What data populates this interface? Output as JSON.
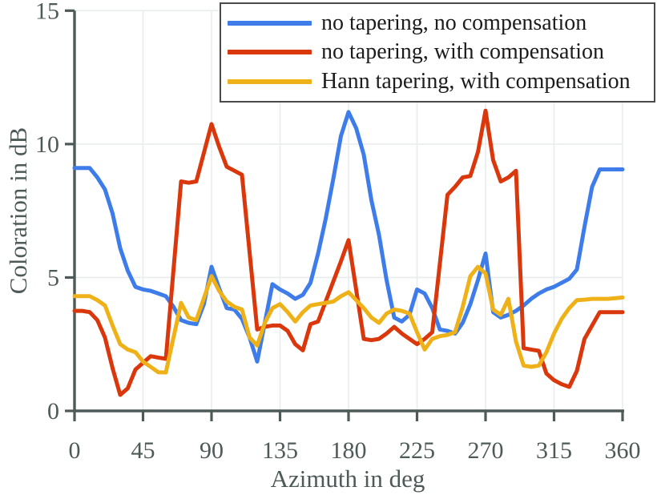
{
  "figure": {
    "kind": "line chart",
    "background": "#ffffff"
  },
  "colors": {
    "axis": "#4d5a58",
    "tick_text": "#4d5a58",
    "grid": "#e8eceb",
    "legend_border": "#4a4a4a",
    "legend_text": "#1c1c1c"
  },
  "chart_data": {
    "type": "line",
    "title": "",
    "xlabel": "Azimuth in deg",
    "ylabel": "Coloration in dB",
    "xlim": [
      0,
      360
    ],
    "ylim": [
      0,
      15
    ],
    "x_ticks": [
      0,
      45,
      90,
      135,
      180,
      225,
      270,
      315,
      360
    ],
    "y_ticks": [
      0,
      5,
      10,
      15
    ],
    "grid": true,
    "legend_position": "top",
    "line_width": 5,
    "series": [
      {
        "name": "no tapering, no compensation",
        "color": "#3e7de9",
        "points": [
          [
            0,
            9.1
          ],
          [
            5,
            9.1
          ],
          [
            10,
            9.1
          ],
          [
            15,
            8.75
          ],
          [
            20,
            8.3
          ],
          [
            25,
            7.4
          ],
          [
            30,
            6.1
          ],
          [
            35,
            5.25
          ],
          [
            40,
            4.65
          ],
          [
            45,
            4.55
          ],
          [
            50,
            4.5
          ],
          [
            55,
            4.4
          ],
          [
            60,
            4.3
          ],
          [
            65,
            3.9
          ],
          [
            70,
            3.4
          ],
          [
            75,
            3.3
          ],
          [
            80,
            3.25
          ],
          [
            85,
            4.0
          ],
          [
            90,
            5.4
          ],
          [
            95,
            4.6
          ],
          [
            100,
            3.85
          ],
          [
            105,
            3.8
          ],
          [
            110,
            3.45
          ],
          [
            115,
            2.75
          ],
          [
            120,
            1.85
          ],
          [
            125,
            3.3
          ],
          [
            130,
            4.75
          ],
          [
            135,
            4.55
          ],
          [
            140,
            4.4
          ],
          [
            145,
            4.2
          ],
          [
            150,
            4.35
          ],
          [
            155,
            4.8
          ],
          [
            160,
            5.9
          ],
          [
            165,
            7.2
          ],
          [
            170,
            8.7
          ],
          [
            175,
            10.3
          ],
          [
            180,
            11.2
          ],
          [
            185,
            10.6
          ],
          [
            190,
            9.6
          ],
          [
            195,
            7.9
          ],
          [
            200,
            6.6
          ],
          [
            205,
            4.9
          ],
          [
            210,
            3.5
          ],
          [
            215,
            3.35
          ],
          [
            220,
            3.6
          ],
          [
            225,
            4.55
          ],
          [
            230,
            4.4
          ],
          [
            235,
            3.85
          ],
          [
            240,
            3.05
          ],
          [
            245,
            3.0
          ],
          [
            250,
            2.9
          ],
          [
            255,
            3.3
          ],
          [
            260,
            4.0
          ],
          [
            265,
            4.9
          ],
          [
            270,
            5.9
          ],
          [
            275,
            3.7
          ],
          [
            280,
            3.5
          ],
          [
            285,
            3.6
          ],
          [
            290,
            3.75
          ],
          [
            295,
            3.95
          ],
          [
            300,
            4.2
          ],
          [
            305,
            4.4
          ],
          [
            310,
            4.55
          ],
          [
            315,
            4.65
          ],
          [
            320,
            4.8
          ],
          [
            325,
            4.95
          ],
          [
            330,
            5.3
          ],
          [
            335,
            6.9
          ],
          [
            340,
            8.4
          ],
          [
            345,
            9.05
          ],
          [
            350,
            9.05
          ],
          [
            355,
            9.05
          ],
          [
            360,
            9.05
          ]
        ]
      },
      {
        "name": "no tapering, with compensation",
        "color": "#da380c",
        "points": [
          [
            0,
            3.75
          ],
          [
            5,
            3.75
          ],
          [
            10,
            3.7
          ],
          [
            15,
            3.4
          ],
          [
            20,
            2.75
          ],
          [
            25,
            1.6
          ],
          [
            30,
            0.6
          ],
          [
            35,
            0.85
          ],
          [
            40,
            1.55
          ],
          [
            45,
            1.8
          ],
          [
            50,
            2.05
          ],
          [
            55,
            2.0
          ],
          [
            60,
            1.95
          ],
          [
            70,
            8.6
          ],
          [
            75,
            8.55
          ],
          [
            80,
            8.6
          ],
          [
            90,
            10.75
          ],
          [
            95,
            9.9
          ],
          [
            100,
            9.15
          ],
          [
            105,
            9.0
          ],
          [
            110,
            8.85
          ],
          [
            120,
            3.05
          ],
          [
            125,
            3.15
          ],
          [
            130,
            3.2
          ],
          [
            135,
            3.2
          ],
          [
            140,
            3.0
          ],
          [
            145,
            2.5
          ],
          [
            150,
            2.27
          ],
          [
            155,
            3.25
          ],
          [
            160,
            3.35
          ],
          [
            165,
            4.1
          ],
          [
            170,
            4.85
          ],
          [
            175,
            5.6
          ],
          [
            180,
            6.4
          ],
          [
            190,
            2.7
          ],
          [
            195,
            2.65
          ],
          [
            200,
            2.7
          ],
          [
            205,
            2.9
          ],
          [
            210,
            3.15
          ],
          [
            215,
            2.9
          ],
          [
            220,
            2.7
          ],
          [
            225,
            2.5
          ],
          [
            230,
            2.7
          ],
          [
            235,
            2.95
          ],
          [
            245,
            8.1
          ],
          [
            250,
            8.4
          ],
          [
            255,
            8.75
          ],
          [
            260,
            8.8
          ],
          [
            265,
            9.7
          ],
          [
            270,
            11.25
          ],
          [
            275,
            9.4
          ],
          [
            280,
            8.6
          ],
          [
            285,
            8.75
          ],
          [
            290,
            9.0
          ],
          [
            295,
            2.35
          ],
          [
            300,
            2.3
          ],
          [
            305,
            2.25
          ],
          [
            310,
            1.4
          ],
          [
            315,
            1.15
          ],
          [
            320,
            1.0
          ],
          [
            325,
            0.9
          ],
          [
            330,
            1.5
          ],
          [
            335,
            2.7
          ],
          [
            340,
            3.2
          ],
          [
            345,
            3.7
          ],
          [
            350,
            3.7
          ],
          [
            355,
            3.7
          ],
          [
            360,
            3.7
          ]
        ]
      },
      {
        "name": "Hann tapering, with compensation",
        "color": "#efb118",
        "points": [
          [
            0,
            4.3
          ],
          [
            5,
            4.3
          ],
          [
            10,
            4.3
          ],
          [
            15,
            4.15
          ],
          [
            20,
            3.95
          ],
          [
            25,
            3.2
          ],
          [
            30,
            2.5
          ],
          [
            35,
            2.3
          ],
          [
            40,
            2.2
          ],
          [
            45,
            1.85
          ],
          [
            50,
            1.65
          ],
          [
            55,
            1.45
          ],
          [
            60,
            1.44
          ],
          [
            70,
            4.05
          ],
          [
            75,
            3.5
          ],
          [
            80,
            3.4
          ],
          [
            90,
            5.05
          ],
          [
            95,
            4.5
          ],
          [
            100,
            4.1
          ],
          [
            105,
            3.9
          ],
          [
            110,
            3.8
          ],
          [
            115,
            2.75
          ],
          [
            120,
            2.45
          ],
          [
            125,
            3.3
          ],
          [
            130,
            3.85
          ],
          [
            135,
            4.0
          ],
          [
            140,
            3.7
          ],
          [
            145,
            3.35
          ],
          [
            150,
            3.7
          ],
          [
            155,
            3.95
          ],
          [
            160,
            4.0
          ],
          [
            165,
            4.05
          ],
          [
            170,
            4.1
          ],
          [
            175,
            4.3
          ],
          [
            180,
            4.45
          ],
          [
            185,
            4.15
          ],
          [
            190,
            3.85
          ],
          [
            195,
            3.5
          ],
          [
            200,
            3.3
          ],
          [
            205,
            3.65
          ],
          [
            210,
            3.8
          ],
          [
            215,
            3.75
          ],
          [
            220,
            3.65
          ],
          [
            225,
            2.95
          ],
          [
            230,
            2.3
          ],
          [
            235,
            2.7
          ],
          [
            240,
            2.8
          ],
          [
            245,
            2.85
          ],
          [
            250,
            2.95
          ],
          [
            255,
            3.9
          ],
          [
            260,
            5.05
          ],
          [
            265,
            5.4
          ],
          [
            270,
            5.15
          ],
          [
            275,
            3.8
          ],
          [
            280,
            3.6
          ],
          [
            285,
            4.2
          ],
          [
            290,
            2.6
          ],
          [
            295,
            1.7
          ],
          [
            300,
            1.65
          ],
          [
            305,
            1.7
          ],
          [
            310,
            2.2
          ],
          [
            315,
            2.9
          ],
          [
            320,
            3.45
          ],
          [
            325,
            3.85
          ],
          [
            330,
            4.15
          ],
          [
            335,
            4.17
          ],
          [
            340,
            4.2
          ],
          [
            345,
            4.2
          ],
          [
            350,
            4.2
          ],
          [
            355,
            4.22
          ],
          [
            360,
            4.25
          ]
        ]
      }
    ]
  }
}
